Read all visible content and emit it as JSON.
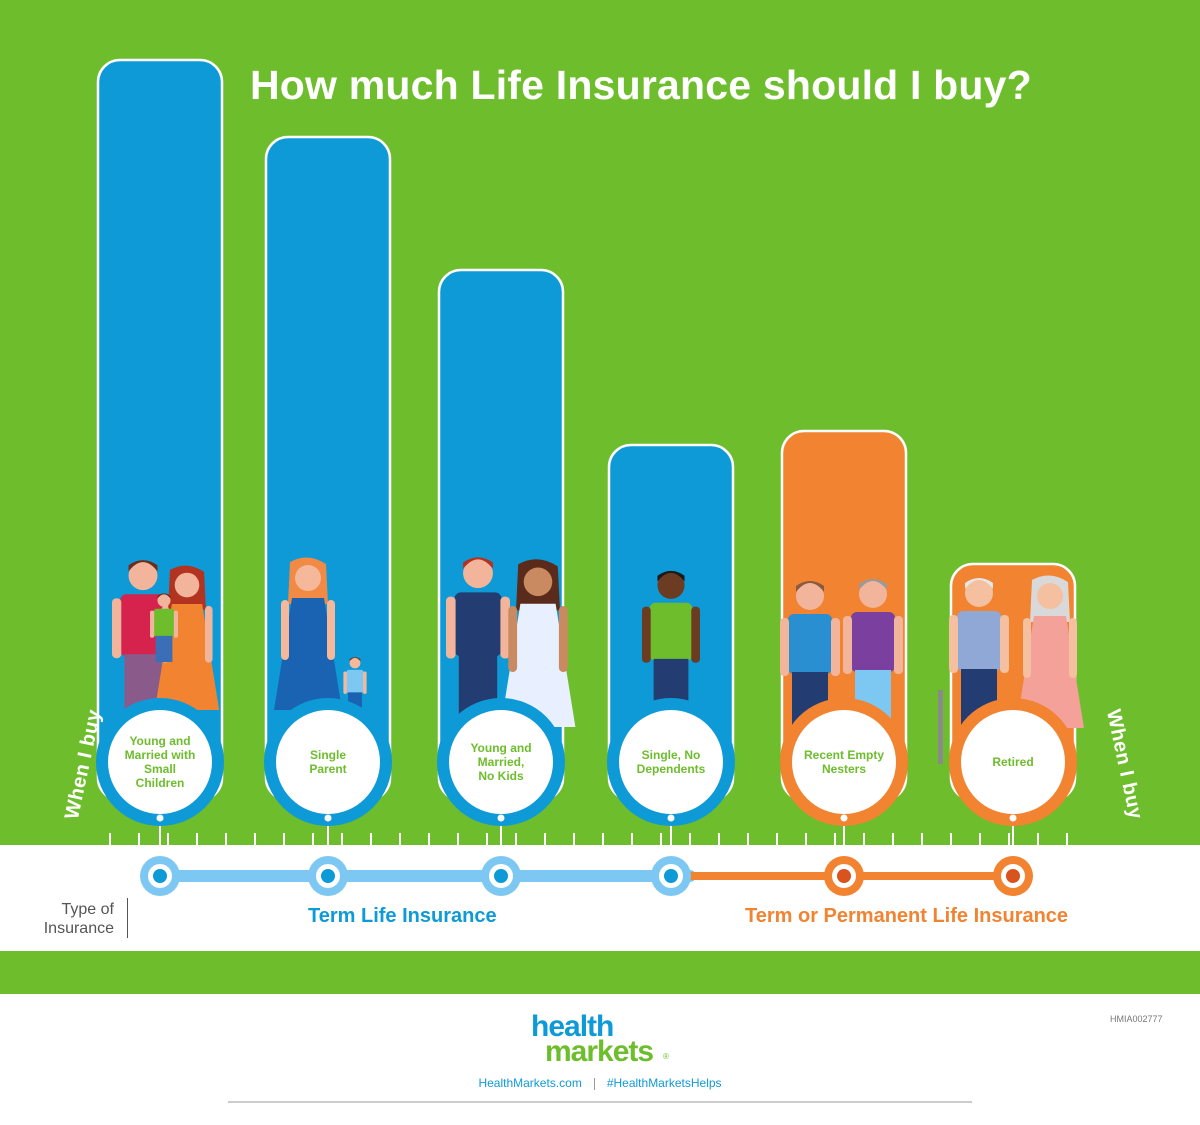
{
  "chart_data": {
    "type": "bar",
    "title": "How much Life Insurance should I buy?",
    "categories": [
      "Young and Married with Small Children",
      "Single Parent",
      "Young and Married, No Kids",
      "Single, No Dependents",
      "Recent Empty Nesters",
      "Retired"
    ],
    "category_lines": [
      [
        "Young and",
        "Married with",
        "Small",
        "Children"
      ],
      [
        "Single",
        "Parent"
      ],
      [
        "Young and",
        "Married,",
        "No Kids"
      ],
      [
        "Single, No",
        "Dependents"
      ],
      [
        "Recent Empty",
        "Nesters"
      ],
      [
        "Retired"
      ]
    ],
    "values": [
      100,
      89,
      70,
      45,
      47,
      28
    ],
    "value_unit": "relative bar height (no axis printed), tallest = 100",
    "types": [
      "term",
      "term",
      "term",
      "term",
      "term_or_permanent",
      "term_or_permanent"
    ],
    "xlabel": "When I buy",
    "axis_label": "Type of Insurance",
    "legend": [
      {
        "key": "term",
        "label": "Term Life Insurance",
        "color": "#0e9ad7"
      },
      {
        "key": "term_or_permanent",
        "label": "Term or Permanent Life Insurance",
        "color": "#f18331"
      }
    ],
    "grid": false
  },
  "colors": {
    "background": "#6dbd2c",
    "term": "#0e9ad7",
    "permanent": "#f18331",
    "timeline_light_blue": "#7dc8f2",
    "category_text": "#6dbd2c"
  },
  "labels": {
    "type_of": "Type of",
    "insurance": "Insurance",
    "when_left": "When I buy",
    "when_right": "When I buy"
  },
  "brand": {
    "health": "health",
    "markets": "markets",
    "tm": "®",
    "site": "HealthMarkets.com",
    "hashtag": "#HealthMarketsHelps",
    "code": "HMIA002777"
  },
  "icons": [
    "family-with-child-icon",
    "single-parent-icon",
    "newlyweds-icon",
    "single-person-icon",
    "empty-nesters-icon",
    "retired-couple-icon"
  ]
}
